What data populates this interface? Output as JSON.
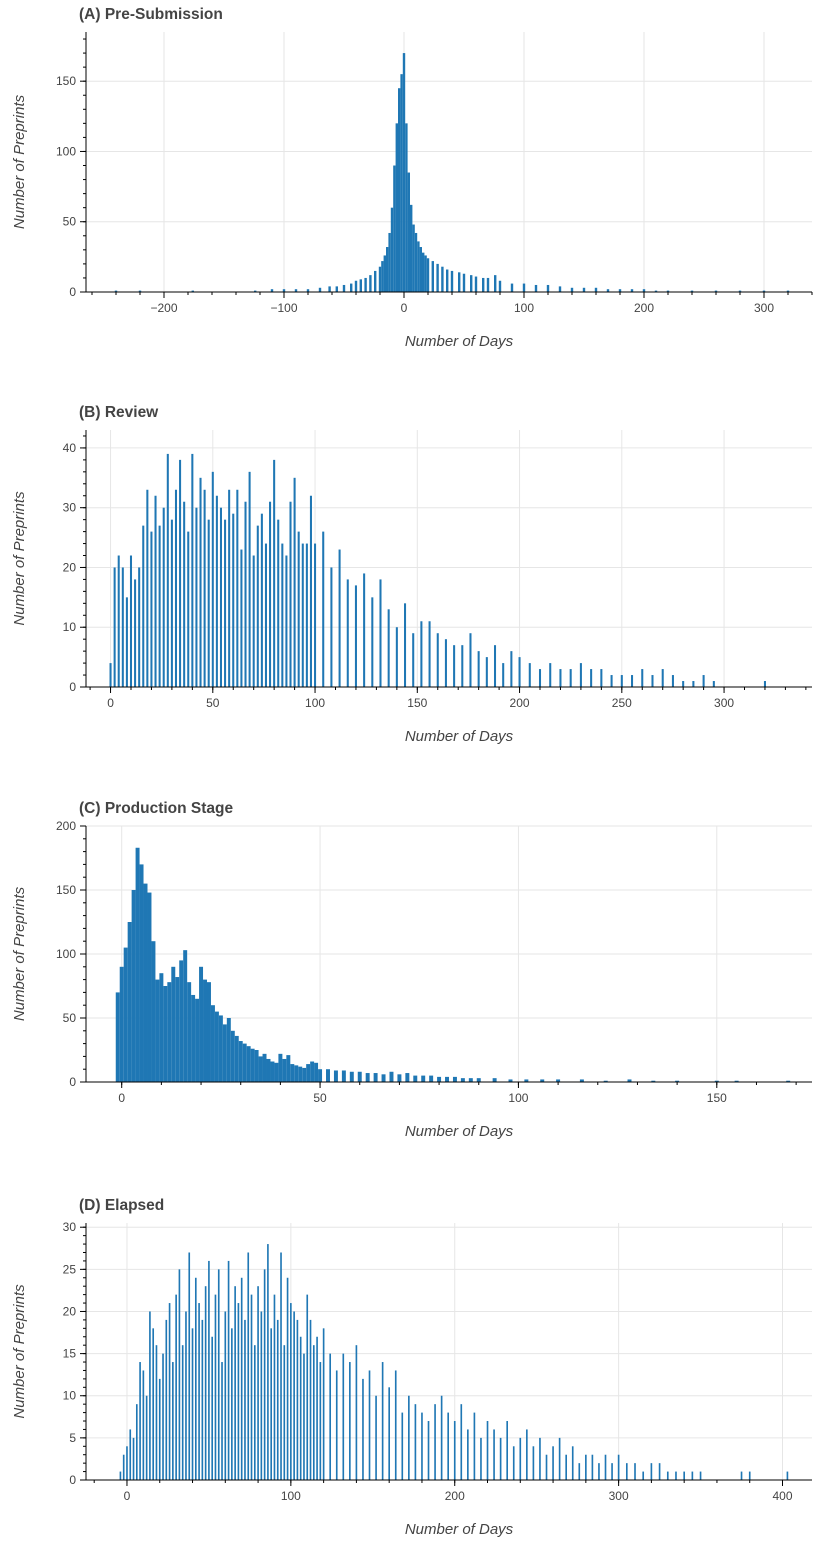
{
  "chart_data": [
    {
      "type": "bar",
      "title": "(A) Pre-Submission",
      "xlabel": "Number of Days",
      "ylabel": "Number of Preprints",
      "xlim": [
        -265,
        340
      ],
      "ylim": [
        0,
        185
      ],
      "xticks": [
        -200,
        -100,
        0,
        100,
        200,
        300
      ],
      "xtick_labels": [
        "−200",
        "−100",
        "0",
        "100",
        "200",
        "300"
      ],
      "yticks": [
        0,
        50,
        100,
        150
      ],
      "ytick_labels": [
        "0",
        "50",
        "100",
        "150"
      ],
      "grid": true,
      "color": "#1f77b4",
      "bin_width": 2,
      "x": [
        -240,
        -220,
        -176,
        -124,
        -110,
        -100,
        -90,
        -80,
        -70,
        -62,
        -56,
        -50,
        -44,
        -40,
        -36,
        -32,
        -28,
        -24,
        -20,
        -18,
        -16,
        -14,
        -12,
        -10,
        -8,
        -6,
        -4,
        -2,
        0,
        2,
        4,
        6,
        8,
        10,
        12,
        14,
        16,
        18,
        20,
        24,
        28,
        32,
        36,
        40,
        46,
        50,
        56,
        60,
        66,
        70,
        76,
        80,
        90,
        100,
        110,
        120,
        130,
        140,
        150,
        160,
        170,
        180,
        190,
        200,
        210,
        220,
        240,
        260,
        280,
        300,
        320
      ],
      "values": [
        1,
        1,
        1,
        1,
        2,
        2,
        2,
        2,
        3,
        4,
        4,
        5,
        6,
        8,
        9,
        10,
        12,
        15,
        18,
        22,
        26,
        32,
        42,
        60,
        90,
        120,
        145,
        155,
        170,
        120,
        85,
        62,
        48,
        42,
        36,
        32,
        28,
        26,
        24,
        22,
        20,
        18,
        16,
        15,
        14,
        13,
        12,
        11,
        10,
        10,
        12,
        8,
        6,
        6,
        5,
        5,
        4,
        3,
        3,
        3,
        2,
        2,
        2,
        2,
        1,
        1,
        1,
        1,
        1,
        1,
        1
      ]
    },
    {
      "type": "bar",
      "title": "(B) Review",
      "xlabel": "Number of Days",
      "ylabel": "Number of Preprints",
      "xlim": [
        -12,
        343
      ],
      "ylim": [
        0,
        43
      ],
      "xticks": [
        0,
        50,
        100,
        150,
        200,
        250,
        300
      ],
      "xtick_labels": [
        "0",
        "50",
        "100",
        "150",
        "200",
        "250",
        "300"
      ],
      "yticks": [
        0,
        10,
        20,
        30,
        40
      ],
      "ytick_labels": [
        "0",
        "10",
        "20",
        "30",
        "40"
      ],
      "grid": true,
      "color": "#1f77b4",
      "bin_width": 1,
      "x": [
        0,
        2,
        4,
        6,
        8,
        10,
        12,
        14,
        16,
        18,
        20,
        22,
        24,
        26,
        28,
        30,
        32,
        34,
        36,
        38,
        40,
        42,
        44,
        46,
        48,
        50,
        52,
        54,
        56,
        58,
        60,
        62,
        64,
        66,
        68,
        70,
        72,
        74,
        76,
        78,
        80,
        82,
        84,
        86,
        88,
        90,
        92,
        94,
        96,
        98,
        100,
        104,
        108,
        112,
        116,
        120,
        124,
        128,
        132,
        136,
        140,
        144,
        148,
        152,
        156,
        160,
        164,
        168,
        172,
        176,
        180,
        184,
        188,
        192,
        196,
        200,
        205,
        210,
        215,
        220,
        225,
        230,
        235,
        240,
        245,
        250,
        255,
        260,
        265,
        270,
        275,
        280,
        285,
        290,
        295,
        320
      ],
      "values": [
        4,
        20,
        22,
        20,
        15,
        22,
        18,
        20,
        27,
        33,
        26,
        32,
        27,
        30,
        39,
        28,
        33,
        38,
        31,
        26,
        39,
        30,
        35,
        33,
        28,
        36,
        32,
        30,
        28,
        33,
        29,
        33,
        23,
        31,
        36,
        22,
        27,
        29,
        24,
        31,
        38,
        28,
        24,
        22,
        31,
        35,
        26,
        24,
        24,
        32,
        24,
        26,
        20,
        23,
        18,
        17,
        19,
        15,
        18,
        13,
        10,
        14,
        9,
        11,
        11,
        9,
        8,
        7,
        7,
        9,
        6,
        5,
        7,
        4,
        6,
        5,
        4,
        3,
        4,
        3,
        3,
        4,
        3,
        3,
        2,
        2,
        2,
        3,
        2,
        3,
        2,
        1,
        1,
        2,
        1,
        1
      ]
    },
    {
      "type": "bar",
      "title": "(C) Production Stage",
      "xlabel": "Number of Days",
      "ylabel": "Number of Preprints",
      "xlim": [
        -9,
        174
      ],
      "ylim": [
        0,
        200
      ],
      "xticks": [
        0,
        50,
        100,
        150
      ],
      "xtick_labels": [
        "0",
        "50",
        "100",
        "150"
      ],
      "yticks": [
        0,
        50,
        100,
        150,
        200
      ],
      "ytick_labels": [
        "0",
        "50",
        "100",
        "150",
        "200"
      ],
      "grid": true,
      "color": "#1f77b4",
      "bin_width": 1,
      "x": [
        -1,
        0,
        1,
        2,
        3,
        4,
        5,
        6,
        7,
        8,
        9,
        10,
        11,
        12,
        13,
        14,
        15,
        16,
        17,
        18,
        19,
        20,
        21,
        22,
        23,
        24,
        25,
        26,
        27,
        28,
        29,
        30,
        31,
        32,
        33,
        34,
        35,
        36,
        37,
        38,
        39,
        40,
        41,
        42,
        43,
        44,
        45,
        46,
        47,
        48,
        49,
        50,
        52,
        54,
        56,
        58,
        60,
        62,
        64,
        66,
        68,
        70,
        72,
        74,
        76,
        78,
        80,
        82,
        84,
        86,
        88,
        90,
        94,
        98,
        102,
        106,
        110,
        116,
        122,
        128,
        134,
        140,
        150,
        155,
        168
      ],
      "values": [
        70,
        90,
        105,
        125,
        150,
        183,
        170,
        155,
        148,
        110,
        80,
        85,
        75,
        78,
        90,
        82,
        95,
        103,
        78,
        68,
        65,
        90,
        80,
        78,
        60,
        55,
        52,
        45,
        50,
        40,
        36,
        32,
        30,
        28,
        26,
        25,
        20,
        22,
        18,
        16,
        15,
        22,
        18,
        21,
        14,
        13,
        12,
        11,
        14,
        16,
        15,
        10,
        10,
        9,
        9,
        8,
        8,
        7,
        7,
        6,
        8,
        6,
        7,
        5,
        5,
        5,
        4,
        4,
        4,
        3,
        3,
        3,
        3,
        2,
        2,
        2,
        2,
        2,
        1,
        2,
        1,
        1,
        1,
        1,
        1
      ]
    },
    {
      "type": "bar",
      "title": "(D) Elapsed",
      "xlabel": "Number of Days",
      "ylabel": "Number of Preprints",
      "xlim": [
        -25,
        418
      ],
      "ylim": [
        0,
        30.5
      ],
      "xticks": [
        0,
        100,
        200,
        300,
        400
      ],
      "xtick_labels": [
        "0",
        "100",
        "200",
        "300",
        "400"
      ],
      "yticks": [
        0,
        5,
        10,
        15,
        20,
        25,
        30
      ],
      "ytick_labels": [
        "0",
        "5",
        "10",
        "15",
        "20",
        "25",
        "30"
      ],
      "grid": true,
      "color": "#1f77b4",
      "bin_width": 1,
      "x": [
        -4,
        -2,
        0,
        2,
        4,
        6,
        8,
        10,
        12,
        14,
        16,
        18,
        20,
        22,
        24,
        26,
        28,
        30,
        32,
        34,
        36,
        38,
        40,
        42,
        44,
        46,
        48,
        50,
        52,
        54,
        56,
        58,
        60,
        62,
        64,
        66,
        68,
        70,
        72,
        74,
        76,
        78,
        80,
        82,
        84,
        86,
        88,
        90,
        92,
        94,
        96,
        98,
        100,
        102,
        104,
        106,
        108,
        110,
        112,
        114,
        116,
        118,
        120,
        124,
        128,
        132,
        136,
        140,
        144,
        148,
        152,
        156,
        160,
        164,
        168,
        172,
        176,
        180,
        184,
        188,
        192,
        196,
        200,
        204,
        208,
        212,
        216,
        220,
        224,
        228,
        232,
        236,
        240,
        244,
        248,
        252,
        256,
        260,
        264,
        268,
        272,
        276,
        280,
        284,
        288,
        292,
        296,
        300,
        305,
        310,
        315,
        320,
        325,
        330,
        335,
        340,
        345,
        350,
        375,
        380,
        403
      ],
      "values": [
        1,
        3,
        4,
        6,
        5,
        9,
        14,
        13,
        10,
        20,
        18,
        16,
        12,
        15,
        19,
        21,
        14,
        22,
        25,
        16,
        20,
        27,
        18,
        24,
        21,
        19,
        23,
        26,
        17,
        22,
        25,
        14,
        20,
        26,
        18,
        23,
        21,
        24,
        19,
        27,
        22,
        16,
        23,
        20,
        25,
        28,
        18,
        22,
        19,
        27,
        16,
        24,
        21,
        20,
        19,
        17,
        15,
        22,
        19,
        16,
        17,
        14,
        18,
        15,
        13,
        15,
        14,
        16,
        12,
        13,
        10,
        14,
        11,
        13,
        8,
        10,
        9,
        8,
        7,
        9,
        10,
        8,
        7,
        9,
        6,
        8,
        5,
        7,
        6,
        5,
        7,
        4,
        5,
        6,
        4,
        5,
        3,
        4,
        5,
        3,
        4,
        2,
        3,
        3,
        2,
        3,
        2,
        3,
        2,
        2,
        1,
        2,
        2,
        1,
        1,
        1,
        1,
        1,
        1,
        1,
        1
      ]
    }
  ]
}
